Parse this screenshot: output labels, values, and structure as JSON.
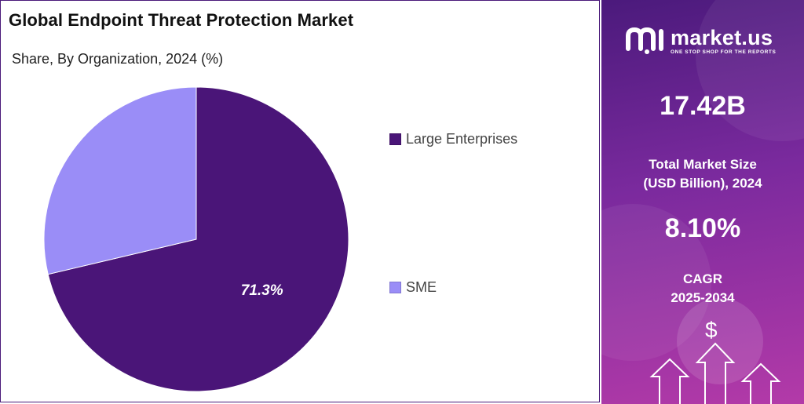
{
  "chart_data": {
    "type": "pie",
    "title": "Global Endpoint Threat Protection Market",
    "subtitle": "Share, By Organization, 2024 (%)",
    "slices": [
      {
        "name": "Large Enterprises",
        "value": 71.3,
        "label": "71.3%",
        "color": "#4a1578"
      },
      {
        "name": "SME",
        "value": 28.7,
        "label": "",
        "color": "#9a8df7"
      }
    ],
    "legend_position": "right"
  },
  "sidebar": {
    "brand_name": "market.us",
    "brand_tagline": "ONE STOP SHOP FOR THE REPORTS",
    "market_size_value": "17.42B",
    "market_size_label_line1": "Total Market Size",
    "market_size_label_line2": "(USD Billion), 2024",
    "cagr_value": "8.10%",
    "cagr_label_line1": "CAGR",
    "cagr_label_line2": "2025-2034",
    "currency_symbol": "$",
    "icon_logo": "market-us-logo-icon",
    "icon_arrows": "up-arrow-icon",
    "accent_color": "#4b1a7c"
  }
}
